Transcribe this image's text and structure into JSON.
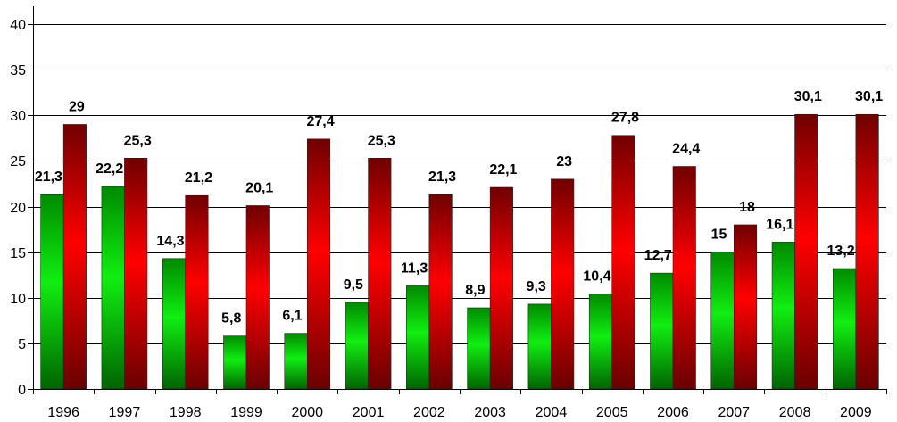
{
  "chart_data": {
    "type": "bar",
    "categories": [
      "1996",
      "1997",
      "1998",
      "1999",
      "2000",
      "2001",
      "2002",
      "2003",
      "2004",
      "2005",
      "2006",
      "2007",
      "2008",
      "2009"
    ],
    "series": [
      {
        "values": [
          21.3,
          22.2,
          14.3,
          5.8,
          6.1,
          9.5,
          11.3,
          8.9,
          9.3,
          10.4,
          12.7,
          15,
          16.1,
          13.2
        ],
        "labels": [
          "21,3",
          "22,2",
          "14,3",
          "5,8",
          "6,1",
          "9,5",
          "11,3",
          "8,9",
          "9,3",
          "10,4",
          "12,7",
          "15",
          "16,1",
          "13,2"
        ],
        "color": "#00cc00"
      },
      {
        "values": [
          29,
          25.3,
          21.2,
          20.1,
          27.4,
          25.3,
          21.3,
          22.1,
          23,
          27.8,
          24.4,
          18,
          30.1,
          30.1
        ],
        "labels": [
          "29",
          "25,3",
          "21,2",
          "20,1",
          "27,4",
          "25,3",
          "21,3",
          "22,1",
          "23",
          "27,8",
          "24,4",
          "18",
          "30,1",
          "30,1"
        ],
        "color": "#ff0000"
      }
    ],
    "ylim": [
      0,
      40
    ],
    "yticks": [
      "0",
      "5",
      "10",
      "15",
      "20",
      "25",
      "30",
      "35",
      "40"
    ],
    "grid": true,
    "legend": "none"
  }
}
